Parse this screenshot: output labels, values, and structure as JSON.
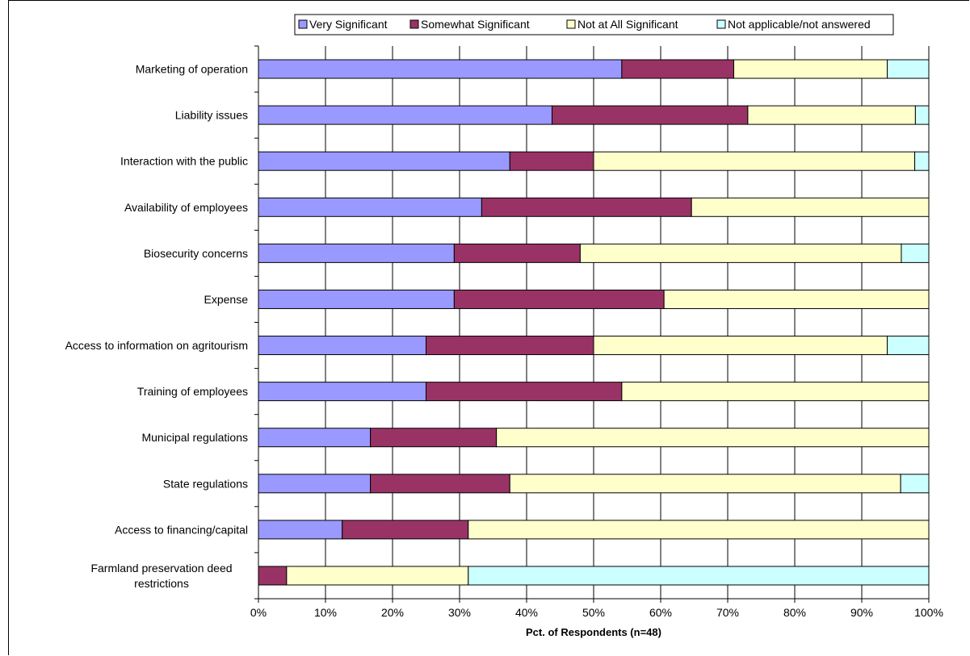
{
  "chart_data": {
    "type": "bar",
    "orientation": "horizontal",
    "stacked": "percent",
    "categories": [
      "Marketing of operation",
      "Liability issues",
      "Interaction with the public",
      "Availability of employees",
      "Biosecurity concerns",
      "Expense",
      "Access to information on agritourism",
      "Training of employees",
      "Municipal regulations",
      "State regulations",
      "Access to financing/capital",
      "Farmland preservation deed restrictions"
    ],
    "series": [
      {
        "name": "Very Significant",
        "color": "#9999ff",
        "values": [
          54.2,
          43.8,
          37.5,
          33.3,
          29.2,
          29.2,
          25.0,
          25.0,
          16.7,
          16.7,
          12.5,
          0.0
        ]
      },
      {
        "name": "Somewhat Significant",
        "color": "#993366",
        "values": [
          16.7,
          29.2,
          12.5,
          31.3,
          18.8,
          31.3,
          25.0,
          29.2,
          18.8,
          20.8,
          18.8,
          4.2
        ]
      },
      {
        "name": "Not at All Significant",
        "color": "#ffffcc",
        "values": [
          22.9,
          25.0,
          47.9,
          35.4,
          47.9,
          39.5,
          43.8,
          45.8,
          64.5,
          58.3,
          68.7,
          27.1
        ]
      },
      {
        "name": "Not applicable/not answered",
        "color": "#ccffff",
        "values": [
          6.2,
          2.0,
          2.1,
          0.0,
          4.1,
          0.0,
          6.2,
          0.0,
          0.0,
          4.2,
          0.0,
          68.7
        ]
      }
    ],
    "x_ticks": [
      "0%",
      "10%",
      "20%",
      "30%",
      "40%",
      "50%",
      "60%",
      "70%",
      "80%",
      "90%",
      "100%"
    ],
    "xlabel": "Pct. of Respondents (n=48)",
    "xlim": [
      0,
      100
    ],
    "grid": true,
    "legend_position": "top"
  }
}
